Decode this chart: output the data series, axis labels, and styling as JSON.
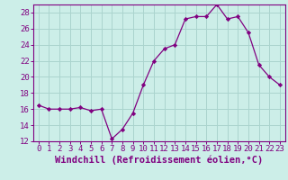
{
  "hours": [
    0,
    1,
    2,
    3,
    4,
    5,
    6,
    7,
    8,
    9,
    10,
    11,
    12,
    13,
    14,
    15,
    16,
    17,
    18,
    19,
    20,
    21,
    22,
    23
  ],
  "values": [
    16.5,
    16.0,
    16.0,
    16.0,
    16.2,
    15.8,
    16.0,
    12.3,
    13.5,
    15.5,
    19.0,
    22.0,
    23.5,
    24.0,
    27.2,
    27.5,
    27.5,
    29.0,
    27.2,
    27.5,
    25.5,
    21.5,
    20.0,
    19.0
  ],
  "line_color": "#800080",
  "marker": "D",
  "marker_size": 2.2,
  "bg_color": "#cceee8",
  "grid_color": "#aad4ce",
  "xlabel": "Windchill (Refroidissement éolien,°C)",
  "xlim": [
    -0.5,
    23.5
  ],
  "ylim": [
    12,
    29
  ],
  "yticks": [
    12,
    14,
    16,
    18,
    20,
    22,
    24,
    26,
    28
  ],
  "tick_fontsize": 6.5,
  "xlabel_fontsize": 7.5,
  "spine_color": "#800080"
}
